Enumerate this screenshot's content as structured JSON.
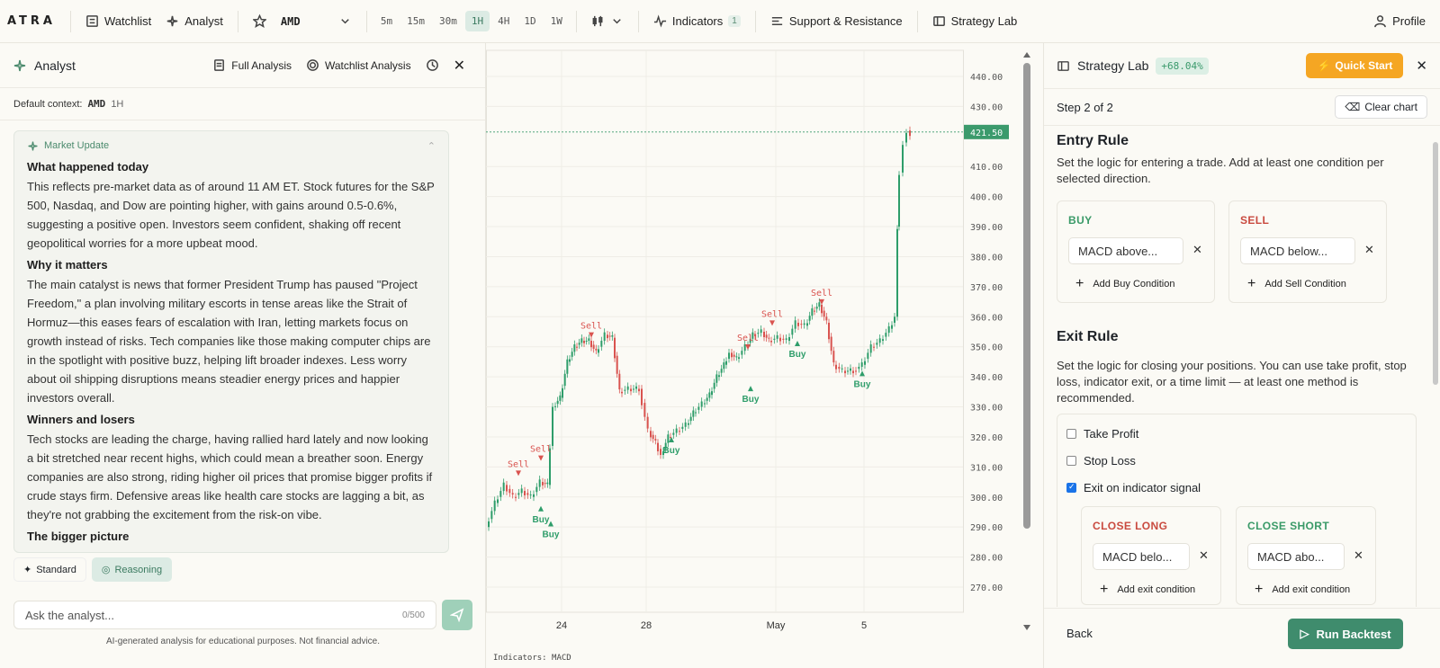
{
  "topbar": {
    "logo": "ATRA",
    "watchlist": "Watchlist",
    "analyst": "Analyst",
    "symbol": "AMD",
    "timeframes": [
      "5m",
      "15m",
      "30m",
      "1H",
      "4H",
      "1D",
      "1W"
    ],
    "active_timeframe": "1H",
    "indicators": "Indicators",
    "indicators_count": "1",
    "support_resistance": "Support & Resistance",
    "strategy_lab": "Strategy Lab",
    "profile": "Profile"
  },
  "analyst": {
    "title": "Analyst",
    "full_analysis": "Full Analysis",
    "watchlist_analysis": "Watchlist Analysis",
    "default_context_label": "Default context:",
    "context_symbol": "AMD",
    "context_timeframe": "1H",
    "card_title": "Market Update",
    "sections": [
      {
        "heading": "What happened today",
        "body": "This reflects pre-market data as of around 11 AM ET. Stock futures for the S&P 500, Nasdaq, and Dow are pointing higher, with gains around 0.5-0.6%, suggesting a positive open. Investors seem confident, shaking off recent geopolitical worries for a more upbeat mood."
      },
      {
        "heading": "Why it matters",
        "body": "The main catalyst is news that former President Trump has paused \"Project Freedom,\" a plan involving military escorts in tense areas like the Strait of Hormuz—this eases fears of escalation with Iran, letting markets focus on growth instead of risks. Tech companies like those making computer chips are in the spotlight with positive buzz, helping lift broader indexes. Less worry about oil shipping disruptions means steadier energy prices and happier investors overall."
      },
      {
        "heading": "Winners and losers",
        "body": "Tech stocks are leading the charge, having rallied hard lately and now looking a bit stretched near recent highs, which could mean a breather soon. Energy companies are also strong, riding higher oil prices that promise bigger profits if crude stays firm. Defensive areas like health care stocks are lagging a bit, as they're not grabbing the excitement from the risk-on vibe."
      },
      {
        "heading": "The bigger picture",
        "body": ""
      }
    ],
    "mode_standard": "Standard",
    "mode_reasoning": "Reasoning",
    "ask_placeholder": "Ask the analyst...",
    "ask_count": "0/500",
    "disclaimer": "AI-generated analysis for educational purposes. Not financial advice."
  },
  "chart": {
    "price_labels": [
      "440.00",
      "430.00",
      "410.00",
      "400.00",
      "390.00",
      "380.00",
      "370.00",
      "360.00",
      "350.00",
      "340.00",
      "330.00",
      "320.00",
      "310.00",
      "300.00",
      "290.00",
      "280.00",
      "270.00"
    ],
    "current_price": "421.50",
    "x_labels": [
      "24",
      "28",
      "May",
      "5"
    ],
    "signals": [
      {
        "label": "Sell",
        "price": 307
      },
      {
        "label": "Sell",
        "price": 312
      },
      {
        "label": "Buy",
        "price": 297
      },
      {
        "label": "Buy",
        "price": 292
      },
      {
        "label": "Sell",
        "price": 353
      },
      {
        "label": "Buy",
        "price": 320
      },
      {
        "label": "Sell",
        "price": 349
      },
      {
        "label": "Buy",
        "price": 337
      },
      {
        "label": "Sell",
        "price": 357
      },
      {
        "label": "Buy",
        "price": 352
      },
      {
        "label": "Sell",
        "price": 364
      },
      {
        "label": "Buy",
        "price": 342
      }
    ],
    "indicators_footer": "Indicators: MACD",
    "colors": {
      "up": "#2e9d6a",
      "down": "#d9534f",
      "current": "#3b9a6c"
    }
  },
  "strategy": {
    "title": "Strategy Lab",
    "performance": "+68.04%",
    "quick_start": "Quick Start",
    "step": "Step 2 of 2",
    "clear_chart": "Clear chart",
    "entry_title": "Entry Rule",
    "entry_desc": "Set the logic for entering a trade. Add at least one condition per selected direction.",
    "buy_label": "BUY",
    "sell_label": "SELL",
    "buy_condition": "MACD above...",
    "sell_condition": "MACD below...",
    "add_buy": "Add Buy Condition",
    "add_sell": "Add Sell Condition",
    "exit_title": "Exit Rule",
    "exit_desc": "Set the logic for closing your positions. You can use take profit, stop loss, indicator exit, or a time limit — at least one method is recommended.",
    "take_profit": "Take Profit",
    "stop_loss": "Stop Loss",
    "exit_indicator": "Exit on indicator signal",
    "close_long": "CLOSE LONG",
    "close_short": "CLOSE SHORT",
    "close_long_condition": "MACD belo...",
    "close_short_condition": "MACD abo...",
    "add_exit": "Add exit condition",
    "back": "Back",
    "run_backtest": "Run Backtest",
    "colors": {
      "buy": "#3a9a68",
      "sell": "#c94a3f",
      "accent": "#f5a623",
      "primary": "#3f8c6d"
    }
  }
}
